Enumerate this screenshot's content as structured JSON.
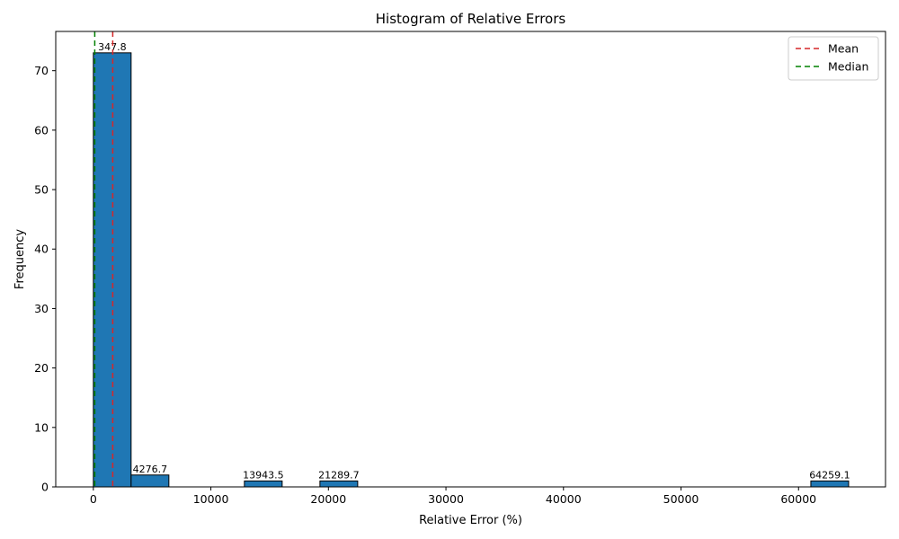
{
  "chart_data": {
    "type": "bar",
    "title": "Histogram of Relative Errors",
    "xlabel": "Relative Error (%)",
    "ylabel": "Frequency",
    "xlim": [
      -3200,
      67400
    ],
    "ylim": [
      0,
      76.6
    ],
    "xticks": [
      0,
      10000,
      20000,
      30000,
      40000,
      50000,
      60000
    ],
    "yticks": [
      0,
      10,
      20,
      30,
      40,
      50,
      60,
      70
    ],
    "bin_edges_start": 0,
    "bin_width": 3213,
    "bins": [
      {
        "x0": 0,
        "x1": 3213,
        "count": 73,
        "label": "347.8"
      },
      {
        "x0": 3213,
        "x1": 6426,
        "count": 2,
        "label": "4276.7"
      },
      {
        "x0": 6426,
        "x1": 9639,
        "count": 0,
        "label": ""
      },
      {
        "x0": 9639,
        "x1": 12852,
        "count": 0,
        "label": ""
      },
      {
        "x0": 12852,
        "x1": 16065,
        "count": 1,
        "label": "13943.5"
      },
      {
        "x0": 16065,
        "x1": 19278,
        "count": 0,
        "label": ""
      },
      {
        "x0": 19278,
        "x1": 22491,
        "count": 1,
        "label": "21289.7"
      },
      {
        "x0": 22491,
        "x1": 25704,
        "count": 0,
        "label": ""
      },
      {
        "x0": 25704,
        "x1": 28917,
        "count": 0,
        "label": ""
      },
      {
        "x0": 28917,
        "x1": 32130,
        "count": 0,
        "label": ""
      },
      {
        "x0": 32130,
        "x1": 35343,
        "count": 0,
        "label": ""
      },
      {
        "x0": 35343,
        "x1": 38556,
        "count": 0,
        "label": ""
      },
      {
        "x0": 38556,
        "x1": 41769,
        "count": 0,
        "label": ""
      },
      {
        "x0": 41769,
        "x1": 44982,
        "count": 0,
        "label": ""
      },
      {
        "x0": 44982,
        "x1": 48195,
        "count": 0,
        "label": ""
      },
      {
        "x0": 48195,
        "x1": 51408,
        "count": 0,
        "label": ""
      },
      {
        "x0": 51408,
        "x1": 54621,
        "count": 0,
        "label": ""
      },
      {
        "x0": 54621,
        "x1": 57834,
        "count": 0,
        "label": ""
      },
      {
        "x0": 57834,
        "x1": 61047,
        "count": 0,
        "label": ""
      },
      {
        "x0": 61047,
        "x1": 64260,
        "count": 1,
        "label": "64259.1"
      }
    ],
    "lines": [
      {
        "name": "Mean",
        "x": 1650,
        "color": "#d62728",
        "style": "dashed"
      },
      {
        "name": "Median",
        "x": 120,
        "color": "#008000",
        "style": "dashed"
      }
    ],
    "bar_color": "#1f77b4",
    "bar_edge_color": "#000000",
    "legend": {
      "position": "top-right"
    },
    "grid": false
  }
}
